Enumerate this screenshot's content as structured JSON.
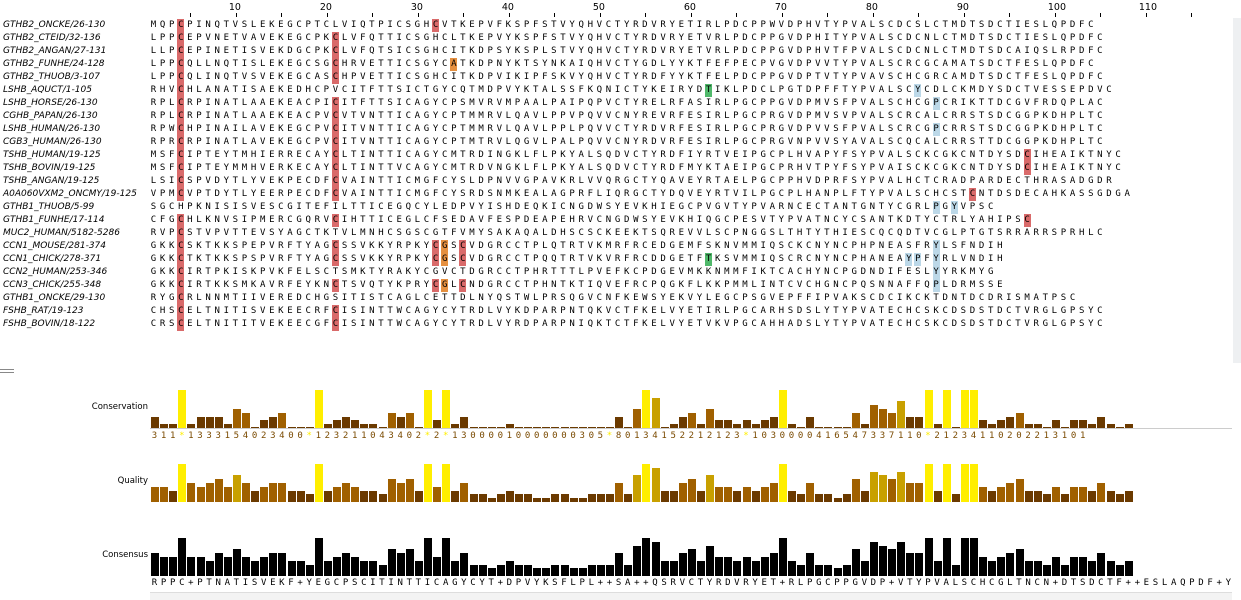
{
  "ruler": {
    "first_label": 10,
    "step": 10,
    "labels": [
      "10",
      "20",
      "30",
      "40",
      "50",
      "60",
      "70",
      "80",
      "90",
      "100",
      "110"
    ]
  },
  "sequences": [
    {
      "name": "GTHB2_ONCKE/26-130",
      "seq": "MQPCPINQTVSLEKEGCPTCLVIQTPICSGHCVTKEPVFKSPFSTVYQHVCTYRDVRYETIRLPDCPPWVDPHVTYPVALSCDCSLCTMDTSDCTIESLQPDFC"
    },
    {
      "name": "GTHB2_CTEID/32-136",
      "seq": "LPPCEPVNETVAVEKEGCPKCLVFQTTICSGHCLTKEPVYKSPFSTVYQHVCTYRDVRYETVRLPDCPPGVDPHITYPVALSCDCNLCTMDTSDCTIESLQPDFC"
    },
    {
      "name": "GTHB2_ANGAN/27-131",
      "seq": "LLPCEPINETISVEKDGCPKCLVFQTSICSGHCITKDPSYKSPLSTVYQHVCTYRDVRYETVRLPDCPPGVDPHVTFPVALSCDCNLCTMDTSDCAIQSLRPDFC"
    },
    {
      "name": "GTHB2_FUNHE/24-128",
      "seq": "LPPCQLLNQTISLEKEGCSGCHRVETTICSGYCATKDPNYKTSYNKAIQHVCTYGDLYYKTFEFPECPVGVDPVVTYPVALSCRCGCAMATSDCTFESLQPDFC"
    },
    {
      "name": "GTHB2_THUOB/3-107",
      "seq": "LPPCQLINQTVSVEKEGCASCHPVETTICSGHCITKDPVIKIPFSKVYQHVCTYRDFYYKTFELPDCPPGVDPTVTYPVAVSCHCGRCAMDTSDCTFESLQPDFC"
    },
    {
      "name": "LSHB_AQUCT/1-105",
      "seq": "RHVCHLANATISAEKEDHCPVCITFTTSICTGYCQTMDPVYKTALSSFKQNICTYKEIRYDTIKLPDCLPGTDPFFTYPVALSCYCDLCKMDYSDCTVESSEPDVC"
    },
    {
      "name": "LSHB_HORSE/26-130",
      "seq": "RPLCRPINATLAAEKEACPICITFTTSICAGYCPSMVRVMPAALPAIPQPVCTYRELRFASIRLPGCPPGVDPMVSFPVALSCHCGPCRIKTTDCGVFRDQPLAC"
    },
    {
      "name": "CGHB_PAPAN/26-130",
      "seq": "RPLCRPINATLAAEKEACPVCVTVNTTICAGYCPTMMRVLQAVLPPVPQVVCNYREVRFESIRLPGCPRGVDPMVSVPVALSCRCALCRRSTSDCGGPKDHPLTC"
    },
    {
      "name": "LSHB_HUMAN/26-130",
      "seq": "RPWCHPINAILAVEKEGCPVCITVNTTICAGYCPTMMRVLQAVLPPLPQVVCTYRDVRFESIRLPGCPRGVDPVVSFPVALSCRCGPCRRSTSDCGGPKDHPLTC"
    },
    {
      "name": "CGB3_HUMAN/26-130",
      "seq": "RPRCRPINATLAVEKEGCPVCITVNTTICAGYCPTMTRVLQGVLPALPQVVCNYRDVRFESIRLPGCPRGVNPVVSYAVALSCQCALCRRSTTDCGGPKDHPLTC"
    },
    {
      "name": "TSHB_HUMAN/19-125",
      "seq": "MSFCIPTEYTMHIERRECAYCLTINTTICAGYCMTRDINGKLFLPKYALSQDVCTYRDFIYRTVEIPGCPLHVAPYFSYPVALSCKCGKCNTDYSDCIHEAIKTNYC"
    },
    {
      "name": "TSHB_BOVIN/19-125",
      "seq": "MSFCIPTEYMMHVERKECAYCLTINTTVCAGYCMTRDVNGKLFLPKYALSQDVCTYRDFMYKTAEIPGCPRHVTPYFSYPVAISCKCGKCNTDYSDCIHEAIKTNYC"
    },
    {
      "name": "TSHB_ANGAN/19-125",
      "seq": "LSICSPVDYTLYVEKPECDFCVAINTTICMGFCYSLDPNVVGPAVKRLVVQRGCTYQAVEYRTAELPGCPPHVDPRFSYPVALHCTCRADPARDECTHRASADGDR"
    },
    {
      "name": "A0A060VXM2_ONCMY/19-125",
      "seq": "VPMCVPTDYTLYEERPECDFCVAINTTICMGFCYSRDSNMKEALAGPRFLIQRGCTYDQVEYRTVILPGCPLHANPLFTYPVALSCHCSTCNTDSDECAHKASSGDGA"
    },
    {
      "name": "GTHB1_THUOB/5-99",
      "seq": "SGCHPKNISISVESCGITEFILTTICEGQCYLEDPVYISHDEQKICNGDWSYEVKHIEGCPVGVTYPVARNCECTANTGNTYCGRLPGYVPSC"
    },
    {
      "name": "GTHB1_FUNHE/17-114",
      "seq": "CFGCHLKNVSIPMERCGQRVCIHTTICEGLCFSEDAVFESPDEAPEHRVCNGDWSYEVKHIQGCPESVTYPVATNCYCSANTKDTYCTRLYAHIPSC"
    },
    {
      "name": "MUC2_HUMAN/5182-5286",
      "seq": "RVPCSTVPVTTEVSYAGCTKTVLMNHCSGSCGTFVMYSAKAQALDHSCSCKEEKTSQREVVLSCPNGGSLTHTYTHIESCQCQDTVCGLPTGTSRRARRSPRHLC"
    },
    {
      "name": "CCN1_MOUSE/281-374",
      "seq": "GKKCSKTKKSPEPVRFTYAGCSSVKKYRPKYCGSCVDGRCCTPLQTRTVKMRFRCEDGEMFSKNVMMIQSCKCNYNCPHPNEASFRYLSFNDIH"
    },
    {
      "name": "CCN1_CHICK/278-371",
      "seq": "GKKCTKTKKSPSPVRFTYAGCSSVKKYRPKYCGSCVDGRCCTPQQTRTVKVRFRCDDGETFTKSVMMIQSCRCNYNCPHANEAYPFYRLVNDIH"
    },
    {
      "name": "CCN2_HUMAN/253-346",
      "seq": "GKKCIRTPKISKPVKFELSCTSMKTYRAKYCGVCTDGRCCTPHRTTTLPVEFKCPDGEVMKKNMMFIKTCACHYNCPGDNDIFESLYYRKMYG"
    },
    {
      "name": "CCN3_CHICK/255-348",
      "seq": "GKKCIRTKKSMKAVRFEYKNCTSVQTYKPRYCGLCNDGRCCTPHNTKTIQVEFRCPQGKFLKKPMMLINTCVCHGNCPQSNNAFFQPLDRMSSE"
    },
    {
      "name": "GTHB1_ONCKE/29-130",
      "seq": "RYGCRLNNMTIIVEREDCHGSITISTCAGLCETTDLNYQSTWLPRSQGVCNFKEWSYEKVYLEGCPSGVEPFFIPVAKSCDCIKCKTDNTDCDRISMATPSC"
    },
    {
      "name": "FSHB_RAT/19-123",
      "seq": "CHSCELTNITISVEKEECRFCISINTTWCAGYCYTRDLVYKDPARPNTQKVCTFKELVYETIRLPGCARHSDSLYTYPVATECHCSKCDSDSTDCTVRGLGPSYC"
    },
    {
      "name": "FSHB_BOVIN/18-122",
      "seq": "CRSCELTNITITVEKEECGFCISINTTWCAGYCYTRDLVYRDPARPNIQKTCTFKELVYETVKVPGCAHHADSLYTYPVATECHCSKCDSDSTDCTVRGLGPSYC"
    }
  ],
  "annotations": {
    "conservation_label": "Conservation",
    "quality_label": "Quality",
    "consensus_label": "Consensus",
    "conservation_symbols": "311*1333154023400*123211043402*2*13000010000000305*80134152212123*1030000416547337110*21234110202213101",
    "consensus_string": "RPPC+PTNATISVEKF+YEGCPSCITINTTICAGYCYT+DPVYKSFLPL++SA++QSRVCTYRDVRYET+RLPGCPPGVDP+VTYPVALSCHCGLTNCN+DTSDCTF++ESLAQPDF+YC",
    "conservation_values": [
      3,
      1,
      1,
      10,
      1,
      3,
      3,
      3,
      1,
      5,
      4,
      0,
      2,
      3,
      4,
      0,
      0,
      0,
      10,
      1,
      2,
      3,
      2,
      1,
      1,
      0,
      4,
      3,
      4,
      0,
      10,
      2,
      10,
      1,
      3,
      0,
      0,
      0,
      0,
      1,
      0,
      0,
      0,
      0,
      0,
      0,
      0,
      0,
      0,
      0,
      0,
      3,
      0,
      5,
      10,
      8,
      0,
      1,
      3,
      4,
      1,
      5,
      2,
      2,
      1,
      2,
      1,
      2,
      3,
      10,
      1,
      0,
      3,
      0,
      0,
      0,
      0,
      4,
      1,
      6,
      5,
      4,
      7,
      3,
      3,
      10,
      1,
      10,
      0,
      10,
      10,
      2,
      1,
      2,
      3,
      4,
      1,
      1,
      0,
      2,
      0,
      2,
      2,
      1,
      3,
      1,
      0,
      1
    ],
    "quality_values": [
      4,
      4,
      3,
      10,
      5,
      4,
      5,
      6,
      4,
      7,
      5,
      3,
      4,
      5,
      5,
      3,
      3,
      2,
      10,
      3,
      4,
      5,
      4,
      3,
      3,
      2,
      6,
      5,
      6,
      3,
      10,
      4,
      10,
      3,
      5,
      2,
      2,
      1,
      2,
      3,
      2,
      2,
      1,
      1,
      2,
      2,
      1,
      1,
      2,
      2,
      2,
      5,
      2,
      7,
      10,
      9,
      3,
      3,
      5,
      6,
      3,
      7,
      4,
      4,
      3,
      4,
      3,
      4,
      5,
      10,
      3,
      2,
      5,
      2,
      2,
      1,
      2,
      6,
      3,
      8,
      7,
      6,
      8,
      5,
      5,
      10,
      3,
      10,
      2,
      10,
      10,
      4,
      3,
      4,
      5,
      6,
      3,
      3,
      2,
      4,
      2,
      4,
      4,
      3,
      5,
      3,
      2,
      3
    ],
    "consensus_values": [
      6,
      5,
      5,
      10,
      5,
      5,
      4,
      6,
      5,
      7,
      5,
      4,
      5,
      6,
      6,
      4,
      4,
      3,
      10,
      4,
      5,
      6,
      5,
      4,
      4,
      3,
      7,
      6,
      7,
      4,
      10,
      5,
      10,
      4,
      6,
      3,
      3,
      2,
      3,
      4,
      3,
      3,
      2,
      2,
      3,
      3,
      2,
      2,
      3,
      3,
      3,
      6,
      3,
      8,
      10,
      9,
      4,
      4,
      6,
      7,
      4,
      8,
      5,
      5,
      4,
      5,
      4,
      5,
      6,
      10,
      4,
      3,
      6,
      3,
      3,
      2,
      3,
      7,
      4,
      9,
      8,
      7,
      9,
      6,
      6,
      10,
      4,
      10,
      3,
      10,
      10,
      5,
      4,
      5,
      6,
      7,
      4,
      4,
      3,
      5,
      3,
      5,
      5,
      4,
      6,
      4,
      3,
      4
    ]
  },
  "colors": {
    "cys_column": "#d96a6a",
    "gly_column": "#e59040",
    "thr_column": "#4fb86a",
    "pro_column": "#bcd8e8",
    "ncol": "#cfe8f2",
    "bar_full": "#ffee00",
    "bar_dark": "#6b3a00",
    "bar_mid": "#a06000",
    "bar_light": "#c8a000",
    "consensus_bar": "#000000"
  }
}
